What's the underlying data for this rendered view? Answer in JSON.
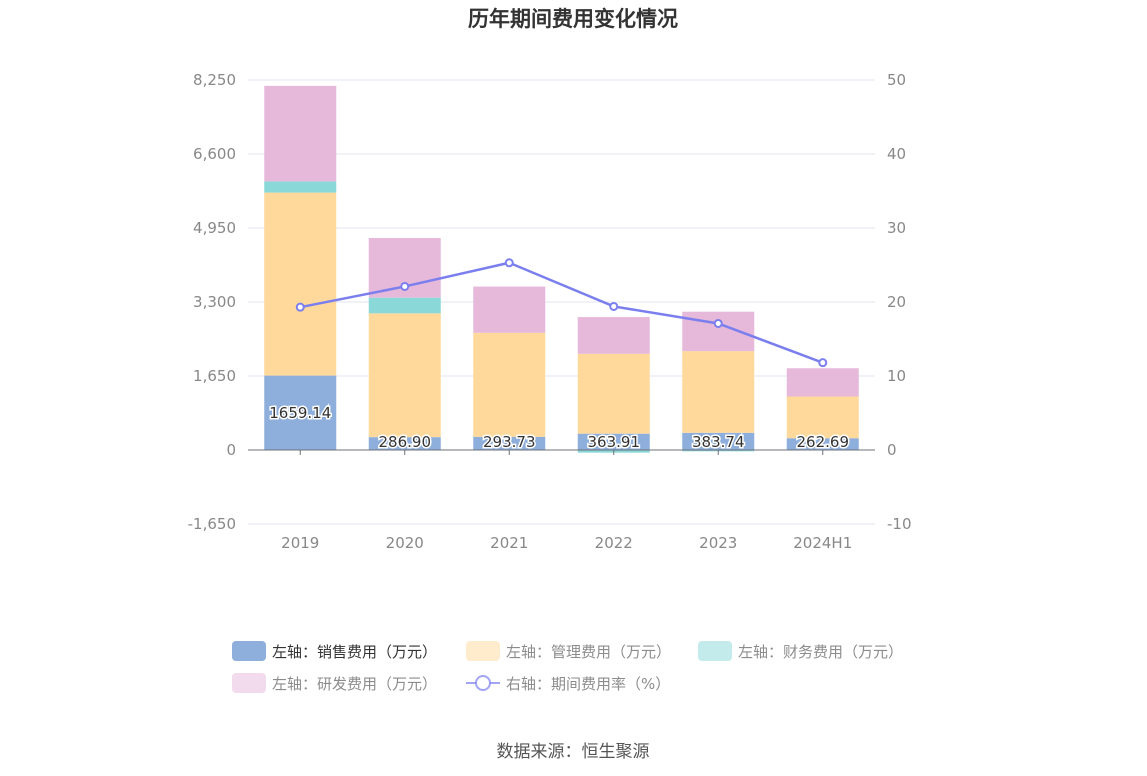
{
  "chart_data": {
    "type": "bar",
    "title": "历年期间费用变化情况",
    "categories": [
      "2019",
      "2020",
      "2021",
      "2022",
      "2023",
      "2024H1"
    ],
    "y_left": {
      "ticks": [
        "8,250",
        "6,600",
        "4,950",
        "3,300",
        "1,650",
        "0",
        "-1,650"
      ],
      "range": [
        -1650,
        8250
      ]
    },
    "y_right": {
      "ticks": [
        "50",
        "40",
        "30",
        "20",
        "10",
        "0",
        "-10"
      ],
      "range": [
        -10,
        50
      ]
    },
    "series": [
      {
        "name": "左轴：销售费用（万元）",
        "axis": "left",
        "kind": "bar",
        "color": "#8eaedb",
        "values": [
          1659.14,
          286.9,
          293.73,
          363.91,
          383.74,
          262.69
        ],
        "labels": [
          "1659.14",
          "286.90",
          "293.73",
          "363.91",
          "383.74",
          "262.69"
        ]
      },
      {
        "name": "左轴：管理费用（万元）",
        "axis": "left",
        "kind": "bar",
        "color": "#ffd99b",
        "values": [
          4080,
          2760,
          2320,
          1780,
          1820,
          930
        ]
      },
      {
        "name": "左轴：财务费用（万元）",
        "axis": "left",
        "kind": "bar",
        "color": "#8ad8d8",
        "values": [
          250,
          350,
          0,
          -60,
          -30,
          0
        ]
      },
      {
        "name": "左轴：研发费用（万元）",
        "axis": "left",
        "kind": "bar",
        "color": "#e6b8da",
        "values": [
          2130,
          1330,
          1030,
          820,
          880,
          630
        ]
      },
      {
        "name": "右轴：期间费用率（%）",
        "axis": "right",
        "kind": "line",
        "color": "#7b7fee",
        "values": [
          19.3,
          22.1,
          25.3,
          19.4,
          17.1,
          11.8
        ]
      }
    ],
    "legend_position": "bottom",
    "grid": true
  },
  "source": "数据来源：恒生聚源"
}
